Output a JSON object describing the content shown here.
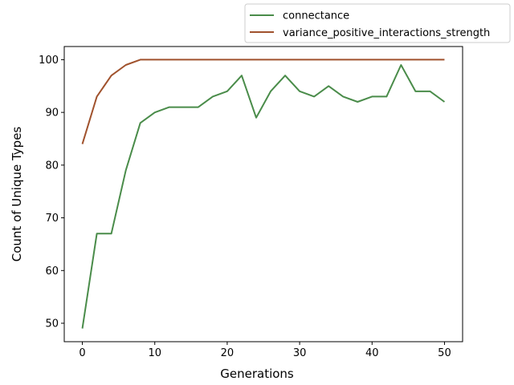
{
  "chart_data": {
    "type": "line",
    "xlabel": "Generations",
    "ylabel": "Count of Unique Types",
    "xlim": [
      -2.5,
      52.5
    ],
    "ylim": [
      46.5,
      102.5
    ],
    "xticks": [
      0,
      10,
      20,
      30,
      40,
      50
    ],
    "yticks": [
      50,
      60,
      70,
      80,
      90,
      100
    ],
    "grid": false,
    "legend_position": "upper-right-outside",
    "x": [
      0,
      2,
      4,
      6,
      8,
      10,
      12,
      14,
      16,
      18,
      20,
      22,
      24,
      26,
      28,
      30,
      32,
      34,
      36,
      38,
      40,
      42,
      44,
      46,
      48,
      50
    ],
    "series": [
      {
        "name": "connectance",
        "color": "#4a8c4a",
        "values": [
          49,
          67,
          67,
          79,
          88,
          90,
          91,
          91,
          91,
          93,
          94,
          97,
          89,
          94,
          97,
          94,
          93,
          95,
          93,
          92,
          93,
          93,
          99,
          94,
          94,
          92
        ]
      },
      {
        "name": "variance_positive_interactions_strength",
        "color": "#a0522d",
        "values": [
          84,
          93,
          97,
          99,
          100,
          100,
          100,
          100,
          100,
          100,
          100,
          100,
          100,
          100,
          100,
          100,
          100,
          100,
          100,
          100,
          100,
          100,
          100,
          100,
          100,
          100
        ]
      }
    ]
  }
}
